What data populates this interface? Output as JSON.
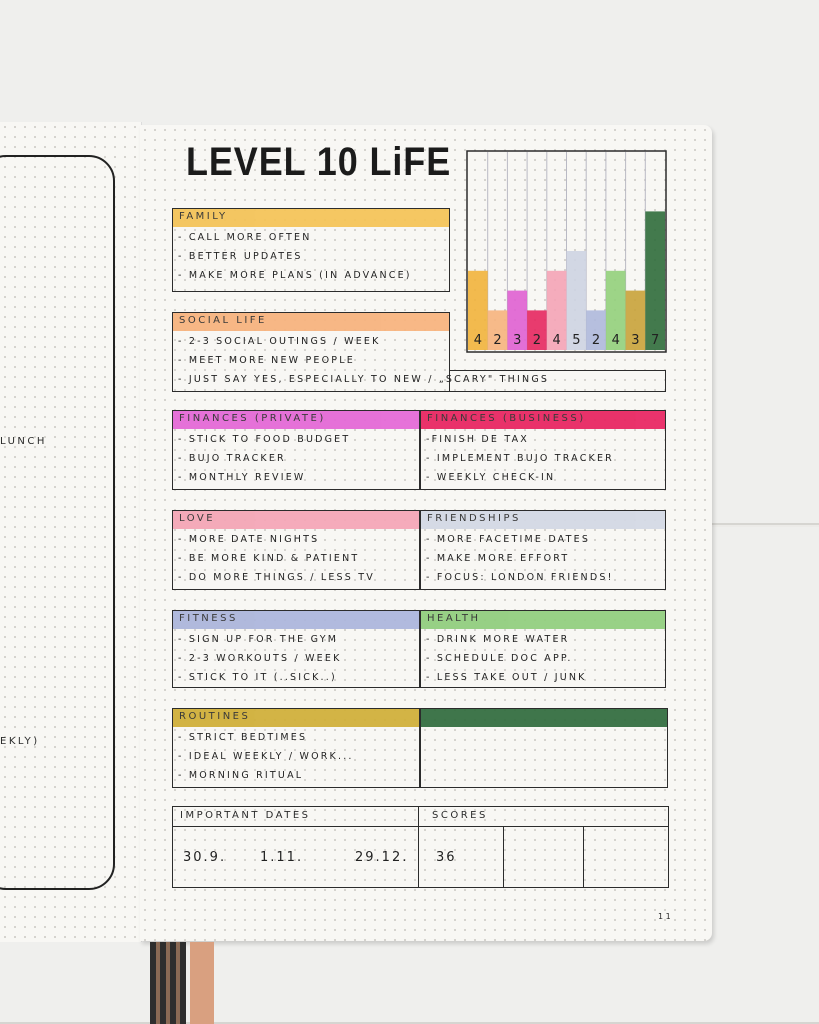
{
  "header": {
    "title": "LEVEL 10 LiFE"
  },
  "chart": {
    "type": "bar",
    "values": [
      4,
      2,
      3,
      2,
      4,
      5,
      2,
      4,
      3,
      7
    ],
    "colors": [
      "#f1b33c",
      "#f6b27d",
      "#df5fd2",
      "#e6265f",
      "#f4a3b6",
      "#cdd3e2",
      "#aeb8dc",
      "#92cf7b",
      "#c8a23a",
      "#2f6b3b"
    ],
    "ylim": [
      0,
      10
    ]
  },
  "sections": [
    {
      "title": "FAMILY",
      "color": "#f4c255",
      "items": [
        "- CALL MORE OFTEN",
        "- BETTER UPDATES",
        "- MAKE MORE PLANS (IN ADVANCE)"
      ]
    },
    {
      "title": "SOCIAL LIFE",
      "color": "#f7b27c",
      "items": [
        "- 2-3 SOCIAL OUTINGS / WEEK",
        "- MEET MORE NEW PEOPLE",
        "- JUST SAY YES, ESPECIALLY TO NEW / „SCARY\" THINGS"
      ]
    },
    {
      "title": "FINANCES (PRIVATE)",
      "color": "#e466d6",
      "items": [
        "- STICK TO FOOD BUDGET",
        "- BUJO TRACKER",
        "- MONTHLY REVIEW"
      ]
    },
    {
      "title": "FINANCES (BUSINESS)",
      "color": "#e8225f",
      "items": [
        "-FINISH DE TAX",
        "- IMPLEMENT BUJO TRACKER",
        "- WEEKLY CHECK-IN"
      ]
    },
    {
      "title": "LOVE",
      "color": "#f4a4b5",
      "items": [
        "- MORE DATE NIGHTS",
        "- BE MORE KIND & PATIENT",
        "- DO MORE THINGS / LESS TV"
      ]
    },
    {
      "title": "FRIENDSHIPS",
      "color": "#d3d8e4",
      "items": [
        "- MORE FACETIME DATES",
        "- MAKE MORE EFFORT",
        "- FOCUS: LONDON FRIENDS!"
      ]
    },
    {
      "title": "FITNESS",
      "color": "#aab4db",
      "items": [
        "- SIGN UP FOR THE GYM",
        "- 2-3 WORKOUTS / WEEK",
        "- STICK TO IT (..SICK..)"
      ]
    },
    {
      "title": "HEALTH",
      "color": "#8fcd7c",
      "items": [
        "- DRINK MORE WATER",
        "- SCHEDULE DOC APP.",
        "- LESS TAKE OUT / JUNK"
      ]
    },
    {
      "title": "ROUTINES",
      "color": "#cfae35",
      "items": [
        "- STRICT BEDTIMES",
        "- IDEAL WEEKLY / WORK...",
        "- MORNING RITUAL"
      ]
    },
    {
      "color": "#2f6a3c"
    }
  ],
  "important_dates": {
    "title": "IMPORTANT DATES",
    "dates": [
      "30.9.",
      "1.11.",
      "29.12."
    ]
  },
  "scores": {
    "title": "SCORES",
    "values": [
      "36"
    ]
  },
  "left_page": {
    "texts": [
      "LUNCH",
      "EKLY)"
    ]
  },
  "page_number": "11"
}
